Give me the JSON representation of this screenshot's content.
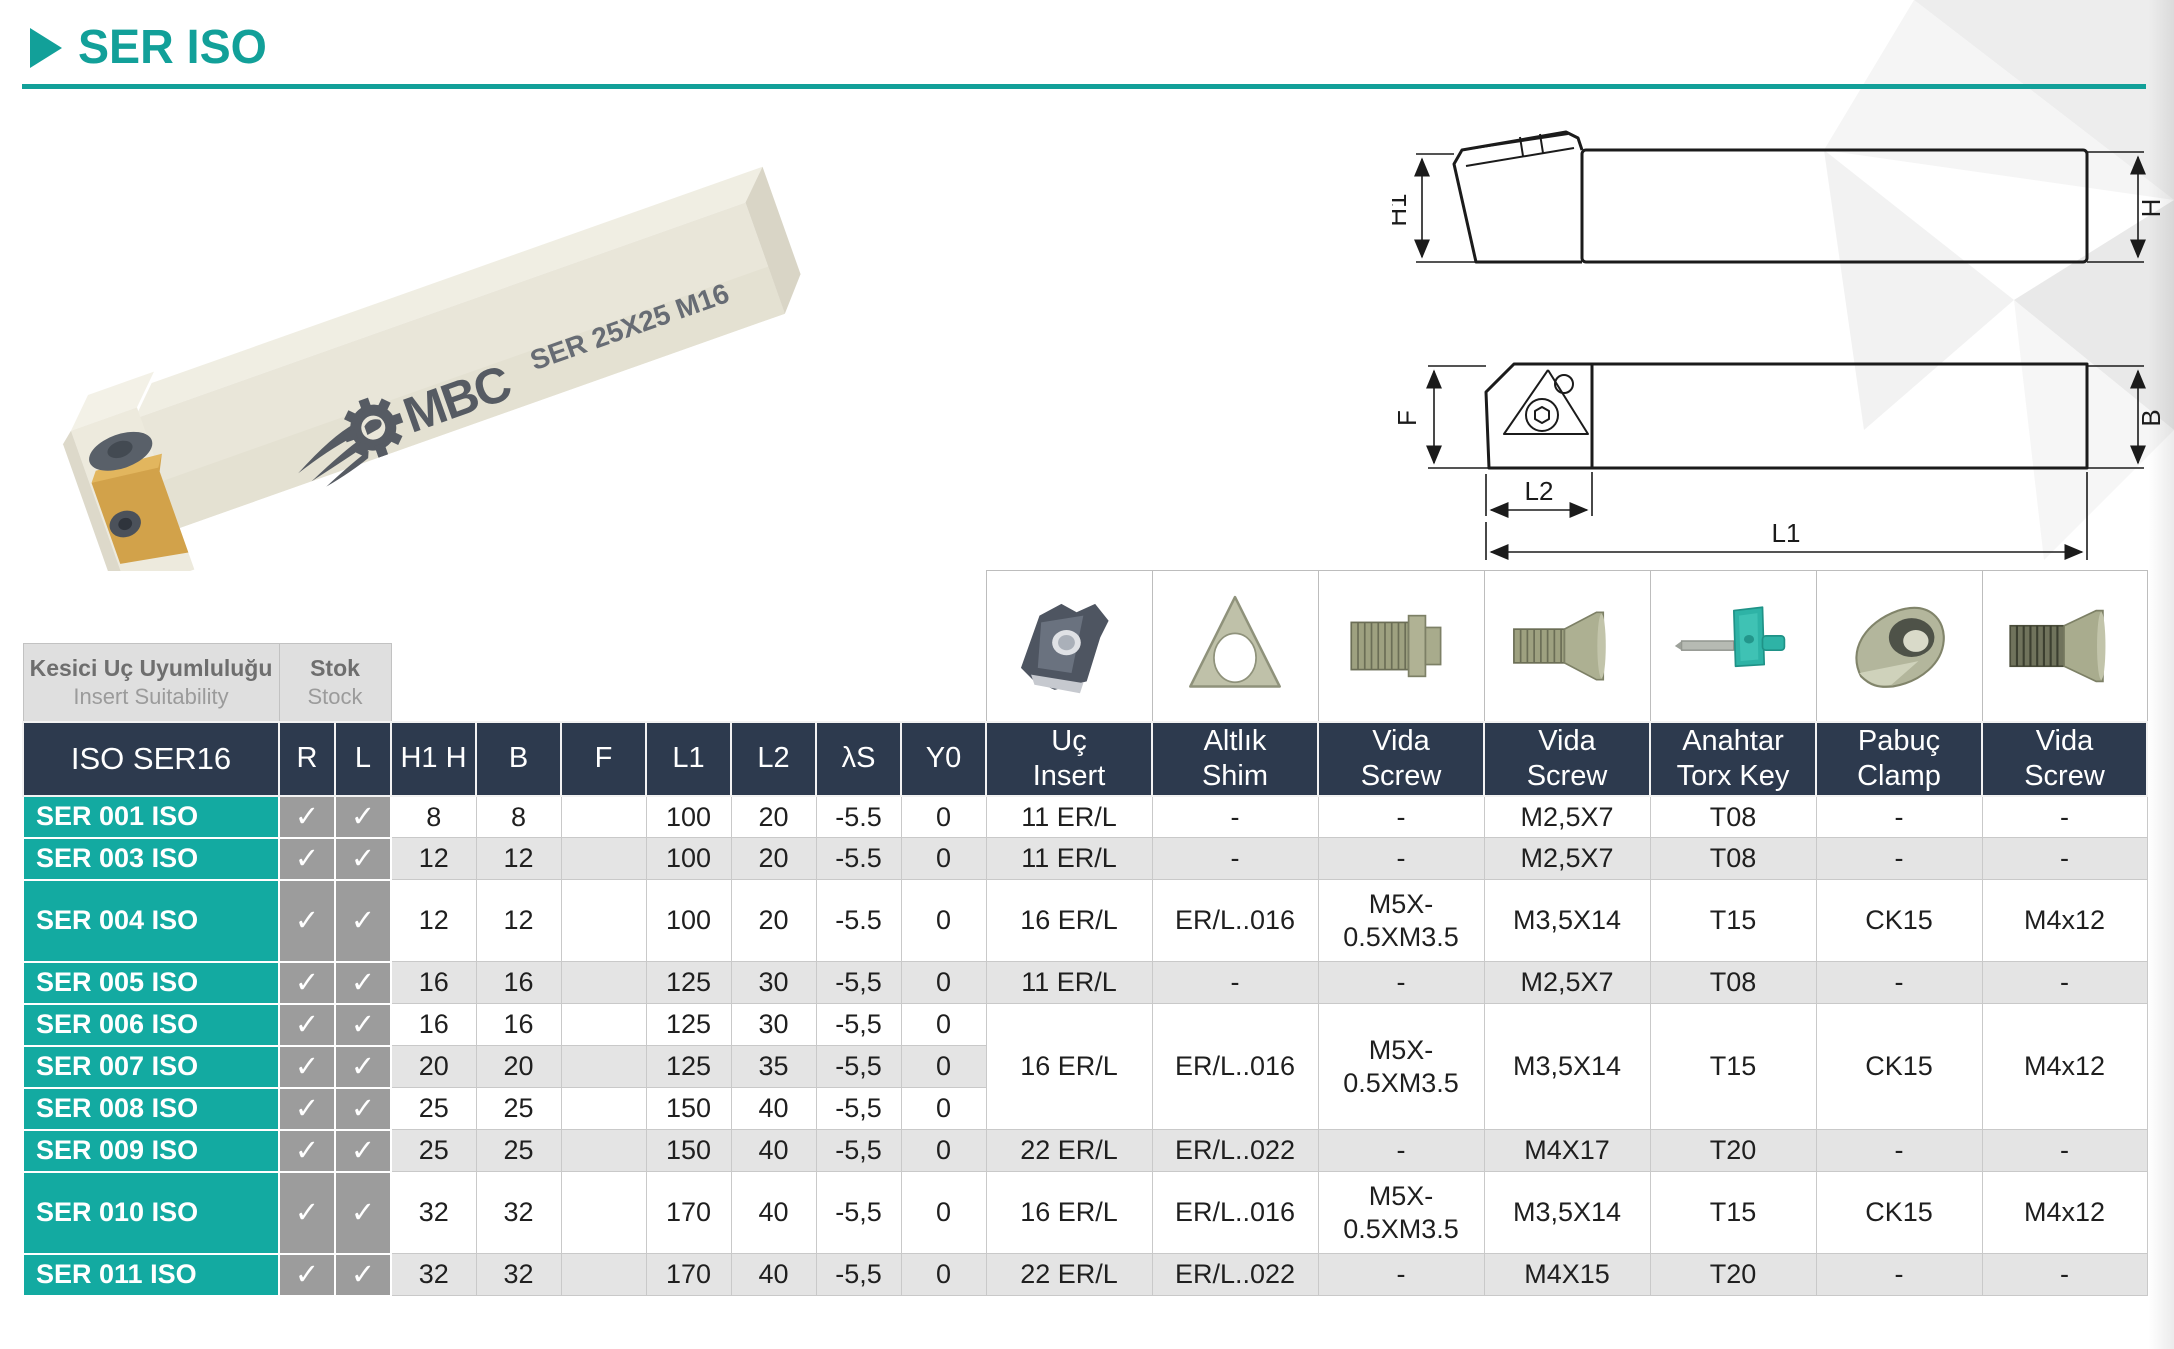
{
  "page": {
    "title": "SER ISO"
  },
  "colors": {
    "accent_teal": "#12a099",
    "row_teal": "#13aaa1",
    "header_navy": "#2d3a4e",
    "check_gray": "#9c9c9c",
    "alt_row_gray": "#e4e4e4",
    "group_box_gray": "#dfdfdf",
    "torx_key_teal": "#2eb3a6"
  },
  "photo": {
    "brand": "MBC",
    "marking": "SER 25X25 M16"
  },
  "drawing": {
    "dims": {
      "h1": "H1",
      "h": "H",
      "f": "F",
      "b": "B",
      "l2": "L2",
      "l1": "L1"
    }
  },
  "table": {
    "group_headers": {
      "insert_suitability_tr": "Kesici Uç Uyumluluğu",
      "insert_suitability_en": "Insert Suitability",
      "stock_tr": "Stok",
      "stock_en": "Stock"
    },
    "columns": {
      "model": "ISO SER16",
      "r": "R",
      "l": "L",
      "h1h": "H1 H",
      "b": "B",
      "f": "F",
      "l1": "L1",
      "l2": "L2",
      "ls": "λS",
      "y0": "Y0",
      "parts": [
        {
          "tr": "Uç",
          "en": "Insert",
          "icon": "insert-icon"
        },
        {
          "tr": "Altlık",
          "en": "Shim",
          "icon": "shim-icon"
        },
        {
          "tr": "Vida",
          "en": "Screw",
          "icon": "shim-screw-icon"
        },
        {
          "tr": "Vida",
          "en": "Screw",
          "icon": "insert-screw-icon"
        },
        {
          "tr": "Anahtar",
          "en": "Torx Key",
          "icon": "torx-key-icon"
        },
        {
          "tr": "Pabuç",
          "en": "Clamp",
          "icon": "clamp-icon"
        },
        {
          "tr": "Vida",
          "en": "Screw",
          "icon": "clamp-screw-icon"
        }
      ]
    },
    "check": "✓",
    "rows": [
      {
        "model": "SER 001 ISO",
        "r": true,
        "l": true,
        "h1h": "8",
        "b": "8",
        "f": "",
        "l1": "100",
        "l2": "20",
        "ls": "-5.5",
        "y0": "0",
        "tall": false,
        "right": [
          "11 ER/L",
          "-",
          "-",
          "M2,5X7",
          "T08",
          "-",
          "-"
        ]
      },
      {
        "model": "SER 003 ISO",
        "r": true,
        "l": true,
        "h1h": "12",
        "b": "12",
        "f": "",
        "l1": "100",
        "l2": "20",
        "ls": "-5.5",
        "y0": "0",
        "tall": false,
        "right": [
          "11 ER/L",
          "-",
          "-",
          "M2,5X7",
          "T08",
          "-",
          "-"
        ]
      },
      {
        "model": "SER 004 ISO",
        "r": true,
        "l": true,
        "h1h": "12",
        "b": "12",
        "f": "",
        "l1": "100",
        "l2": "20",
        "ls": "-5.5",
        "y0": "0",
        "tall": true,
        "right": [
          "16 ER/L",
          "ER/L..016",
          "M5X-\n0.5XM3.5",
          "M3,5X14",
          "T15",
          "CK15",
          "M4x12"
        ]
      },
      {
        "model": "SER 005 ISO",
        "r": true,
        "l": true,
        "h1h": "16",
        "b": "16",
        "f": "",
        "l1": "125",
        "l2": "30",
        "ls": "-5,5",
        "y0": "0",
        "tall": false,
        "right": [
          "11 ER/L",
          "-",
          "-",
          "M2,5X7",
          "T08",
          "-",
          "-"
        ]
      },
      {
        "model": "SER 006 ISO",
        "r": true,
        "l": true,
        "h1h": "16",
        "b": "16",
        "f": "",
        "l1": "125",
        "l2": "30",
        "ls": "-5,5",
        "y0": "0",
        "tall": false,
        "right_span": {
          "rows": 3,
          "cells": [
            "16 ER/L",
            "ER/L..016",
            "M5X-\n0.5XM3.5",
            "M3,5X14",
            "T15",
            "CK15",
            "M4x12"
          ]
        }
      },
      {
        "model": "SER 007 ISO",
        "r": true,
        "l": true,
        "h1h": "20",
        "b": "20",
        "f": "",
        "l1": "125",
        "l2": "35",
        "ls": "-5,5",
        "y0": "0",
        "tall": false,
        "right": null
      },
      {
        "model": "SER 008 ISO",
        "r": true,
        "l": true,
        "h1h": "25",
        "b": "25",
        "f": "",
        "l1": "150",
        "l2": "40",
        "ls": "-5,5",
        "y0": "0",
        "tall": false,
        "right": null
      },
      {
        "model": "SER 009 ISO",
        "r": true,
        "l": true,
        "h1h": "25",
        "b": "25",
        "f": "",
        "l1": "150",
        "l2": "40",
        "ls": "-5,5",
        "y0": "0",
        "tall": false,
        "right": [
          "22 ER/L",
          "ER/L..022",
          "-",
          "M4X17",
          "T20",
          "-",
          "-"
        ]
      },
      {
        "model": "SER 010 ISO",
        "r": true,
        "l": true,
        "h1h": "32",
        "b": "32",
        "f": "",
        "l1": "170",
        "l2": "40",
        "ls": "-5,5",
        "y0": "0",
        "tall": true,
        "right": [
          "16 ER/L",
          "ER/L..016",
          "M5X-\n0.5XM3.5",
          "M3,5X14",
          "T15",
          "CK15",
          "M4x12"
        ]
      },
      {
        "model": "SER 011 ISO",
        "r": true,
        "l": true,
        "h1h": "32",
        "b": "32",
        "f": "",
        "l1": "170",
        "l2": "40",
        "ls": "-5,5",
        "y0": "0",
        "tall": false,
        "right": [
          "22 ER/L",
          "ER/L..022",
          "-",
          "M4X15",
          "T20",
          "-",
          "-"
        ]
      }
    ]
  }
}
